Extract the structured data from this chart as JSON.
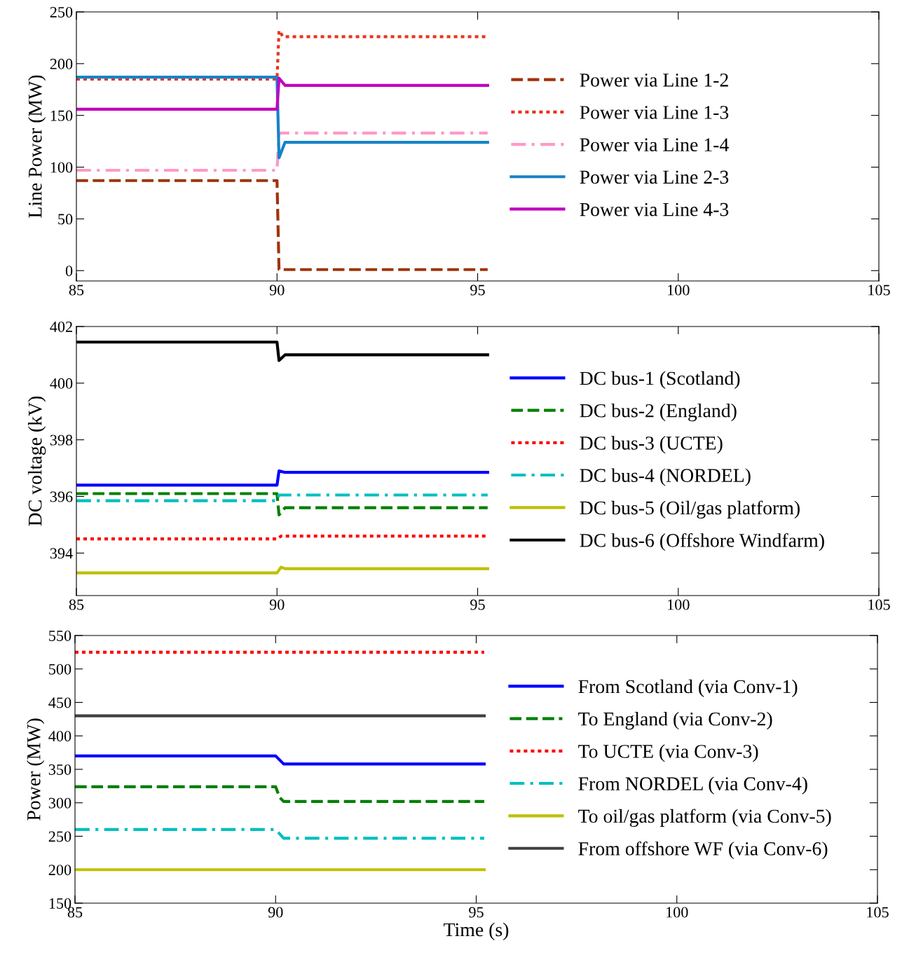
{
  "chart_data": [
    {
      "type": "line",
      "ylabel": "Line Power (MW)",
      "xlim": [
        85,
        105
      ],
      "xticks": [
        85,
        90,
        95,
        100,
        105
      ],
      "ylim": [
        -10,
        250
      ],
      "yticks": [
        0,
        50,
        100,
        150,
        200,
        250
      ],
      "grid": false,
      "legend": "right",
      "marker": "none",
      "series": [
        {
          "name": "Power via Line 1-2",
          "color": "#a0330a",
          "line_style": "dashed",
          "x": [
            85,
            90,
            90.05,
            95.25
          ],
          "values": [
            87,
            87,
            1,
            1
          ]
        },
        {
          "name": "Power via Line 1-3",
          "color": "#e8341c",
          "line_style": "dotted",
          "x": [
            85,
            90,
            90.05,
            90.15,
            95.25
          ],
          "values": [
            185,
            185,
            232,
            226,
            226
          ]
        },
        {
          "name": "Power via Line 1-4",
          "color": "#ff99c8",
          "line_style": "dashdot",
          "x": [
            85,
            90,
            90.05,
            95.25
          ],
          "values": [
            97,
            97,
            133,
            133
          ]
        },
        {
          "name": "Power via Line 2-3",
          "color": "#1683c8",
          "line_style": "solid",
          "x": [
            85,
            90,
            90.05,
            90.2,
            95.25
          ],
          "values": [
            187,
            187,
            109,
            124,
            124
          ]
        },
        {
          "name": "Power via Line 4-3",
          "color": "#c000c0",
          "line_style": "solid",
          "x": [
            85,
            90,
            90.05,
            90.2,
            95.25
          ],
          "values": [
            156,
            156,
            186,
            179,
            179
          ]
        }
      ]
    },
    {
      "type": "line",
      "ylabel": "DC voltage (kV)",
      "xlim": [
        85,
        105
      ],
      "xticks": [
        85,
        90,
        95,
        100,
        105
      ],
      "ylim": [
        392.5,
        402
      ],
      "yticks": [
        394,
        396,
        398,
        400,
        402
      ],
      "grid": false,
      "legend": "right",
      "marker": "none",
      "series": [
        {
          "name": "DC bus-1 (Scotland)",
          "color": "#0000ff",
          "line_style": "solid",
          "x": [
            85,
            90,
            90.05,
            90.2,
            95.25
          ],
          "values": [
            396.4,
            396.4,
            396.9,
            396.85,
            396.85
          ]
        },
        {
          "name": "DC bus-2 (England)",
          "color": "#008000",
          "line_style": "dashed",
          "x": [
            85,
            90,
            90.05,
            90.2,
            95.25
          ],
          "values": [
            396.1,
            396.1,
            395.35,
            395.6,
            395.6
          ]
        },
        {
          "name": "DC bus-3 (UCTE)",
          "color": "#ff0000",
          "line_style": "dotted",
          "x": [
            85,
            90,
            90.1,
            95.25
          ],
          "values": [
            394.5,
            394.5,
            394.6,
            394.6
          ]
        },
        {
          "name": "DC bus-4 (NORDEL)",
          "color": "#00bfbf",
          "line_style": "dashdot",
          "x": [
            85,
            90,
            90.05,
            95.25
          ],
          "values": [
            395.85,
            395.85,
            396.05,
            396.05
          ]
        },
        {
          "name": "DC bus-5 (Oil/gas platform)",
          "color": "#bfbf00",
          "line_style": "solid",
          "x": [
            85,
            90,
            90.1,
            90.2,
            95.25
          ],
          "values": [
            393.3,
            393.3,
            393.5,
            393.45,
            393.45
          ]
        },
        {
          "name": "DC bus-6 (Offshore Windfarm)",
          "color": "#000000",
          "line_style": "solid",
          "x": [
            85,
            90,
            90.05,
            90.2,
            95.25
          ],
          "values": [
            401.45,
            401.45,
            400.8,
            401.0,
            401.0
          ]
        }
      ]
    },
    {
      "type": "line",
      "ylabel": "Power (MW)",
      "xlabel": "Time (s)",
      "xlim": [
        85,
        105
      ],
      "xticks": [
        85,
        90,
        95,
        100,
        105
      ],
      "ylim": [
        150,
        550
      ],
      "yticks": [
        150,
        200,
        250,
        300,
        350,
        400,
        450,
        500,
        550
      ],
      "grid": false,
      "legend": "right",
      "marker": "none",
      "series": [
        {
          "name": "From Scotland (via Conv-1)",
          "color": "#0000ff",
          "line_style": "solid",
          "x": [
            85,
            90,
            90.2,
            95.2
          ],
          "values": [
            370,
            370,
            358,
            358
          ]
        },
        {
          "name": "To England (via Conv-2)",
          "color": "#008000",
          "line_style": "dashed",
          "x": [
            85,
            90,
            90.1,
            90.2,
            95.2
          ],
          "values": [
            324,
            324,
            308,
            302,
            302
          ]
        },
        {
          "name": "To UCTE (via Conv-3)",
          "color": "#ff0000",
          "line_style": "dotted",
          "x": [
            85,
            95.2
          ],
          "values": [
            525,
            525
          ]
        },
        {
          "name": "From NORDEL (via Conv-4)",
          "color": "#00bfbf",
          "line_style": "dashdot",
          "x": [
            85,
            90,
            90.2,
            95.2
          ],
          "values": [
            260,
            260,
            247,
            247
          ]
        },
        {
          "name": "To oil/gas platform (via Conv-5)",
          "color": "#bfbf00",
          "line_style": "solid",
          "x": [
            85,
            95.2
          ],
          "values": [
            200,
            200
          ]
        },
        {
          "name": "From offshore WF (via Conv-6)",
          "color": "#404040",
          "line_style": "solid",
          "x": [
            85,
            95.2
          ],
          "values": [
            430,
            430
          ]
        }
      ]
    }
  ]
}
